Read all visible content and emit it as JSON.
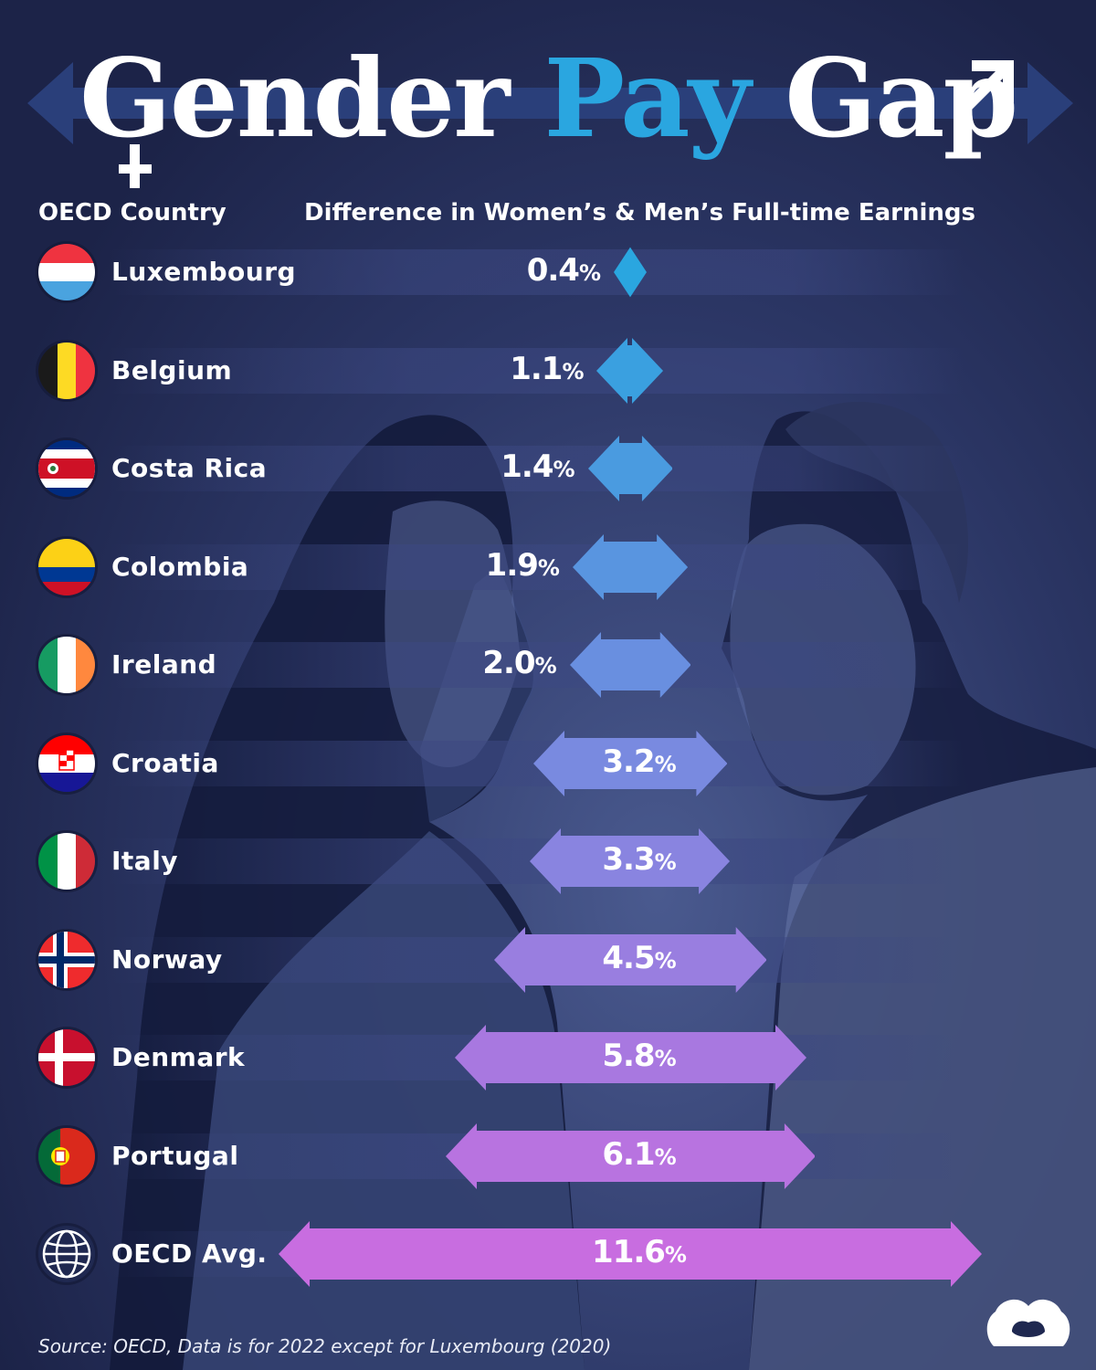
{
  "title": {
    "w1": "Gender",
    "w2": "Pay",
    "w3": "Gap"
  },
  "headers": {
    "country": "OECD Country",
    "difference": "Difference in Women’s & Men’s Full-time Earnings"
  },
  "source": "Source: OECD, Data is for 2022 except for Luxembourg (2020)",
  "colors": {
    "background": "#1f2850",
    "title_accent": "#2aa6e0",
    "bar_start": "#2aa6e0",
    "bar_end": "#c86de0"
  },
  "chart_data": {
    "type": "bar",
    "title": "Gender Pay Gap",
    "xlabel": "OECD Country",
    "ylabel": "Difference in Women’s & Men’s Full-time Earnings",
    "unit": "%",
    "categories": [
      "Luxembourg",
      "Belgium",
      "Costa Rica",
      "Colombia",
      "Ireland",
      "Croatia",
      "Italy",
      "Norway",
      "Denmark",
      "Portugal",
      "OECD Avg."
    ],
    "values": [
      0.4,
      1.1,
      1.4,
      1.9,
      2.0,
      3.2,
      3.3,
      4.5,
      5.8,
      6.1,
      11.6
    ],
    "labels": [
      "0.4",
      "1.1",
      "1.4",
      "1.9",
      "2.0",
      "3.2",
      "3.3",
      "4.5",
      "5.8",
      "6.1",
      "11.6"
    ],
    "flag_icons": [
      "luxembourg-flag-icon",
      "belgium-flag-icon",
      "costa-rica-flag-icon",
      "colombia-flag-icon",
      "ireland-flag-icon",
      "croatia-flag-icon",
      "italy-flag-icon",
      "norway-flag-icon",
      "denmark-flag-icon",
      "portugal-flag-icon",
      "globe-icon"
    ]
  }
}
